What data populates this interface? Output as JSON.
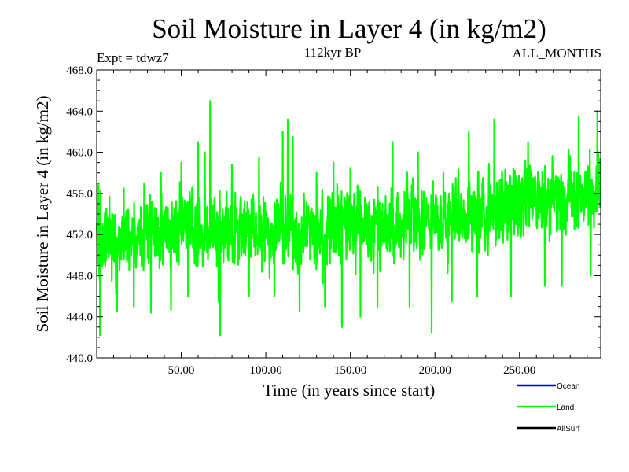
{
  "chart_data": {
    "type": "line",
    "title": "Soil Moisture in Layer 4 (in kg/m2)",
    "subtitle_left": "Expt = tdwz7",
    "subtitle_center": "112kyr BP",
    "subtitle_right": "ALL_MONTHS",
    "xlabel": "Time (in years since start)",
    "ylabel": "Soil Moisture in Layer 4 (in kg/m2)",
    "xlim": [
      0,
      298
    ],
    "ylim": [
      440,
      468
    ],
    "x_ticks": [
      50,
      100,
      150,
      200,
      250
    ],
    "x_tick_labels": [
      "50.00",
      "100.00",
      "150.00",
      "200.00",
      "250.00"
    ],
    "y_ticks": [
      440,
      444,
      448,
      452,
      456,
      460,
      464,
      468
    ],
    "y_tick_labels": [
      "440.0",
      "444.0",
      "448.0",
      "452.0",
      "456.0",
      "460.0",
      "464.0",
      "468.0"
    ],
    "grid": false,
    "legend_position": "bottom-right",
    "series": [
      {
        "name": "Ocean",
        "color": "#0000cc",
        "values": []
      },
      {
        "name": "Land",
        "color": "#00ff00",
        "x_start": 0,
        "x_step": 1,
        "trend": {
          "x": [
            0,
            50,
            100,
            150,
            200,
            250,
            298
          ],
          "y": [
            451.5,
            452.5,
            452.5,
            452.8,
            453.0,
            455.0,
            455.8
          ]
        },
        "noise_amplitude": 3.5,
        "samples": [
          {
            "x": 1,
            "y": 457
          },
          {
            "x": 2,
            "y": 442.2
          },
          {
            "x": 9,
            "y": 447.5
          },
          {
            "x": 12,
            "y": 444.5
          },
          {
            "x": 16,
            "y": 456.5
          },
          {
            "x": 22,
            "y": 445
          },
          {
            "x": 28,
            "y": 457
          },
          {
            "x": 32,
            "y": 444.4
          },
          {
            "x": 38,
            "y": 458
          },
          {
            "x": 44,
            "y": 444.7
          },
          {
            "x": 50,
            "y": 459
          },
          {
            "x": 54,
            "y": 446
          },
          {
            "x": 60,
            "y": 461
          },
          {
            "x": 64,
            "y": 460
          },
          {
            "x": 67,
            "y": 465
          },
          {
            "x": 72,
            "y": 445.5
          },
          {
            "x": 73,
            "y": 442.2
          },
          {
            "x": 80,
            "y": 458.8
          },
          {
            "x": 90,
            "y": 446
          },
          {
            "x": 96,
            "y": 459.5
          },
          {
            "x": 105,
            "y": 446
          },
          {
            "x": 110,
            "y": 462
          },
          {
            "x": 113,
            "y": 463.2
          },
          {
            "x": 116,
            "y": 461.5
          },
          {
            "x": 120,
            "y": 444.5
          },
          {
            "x": 130,
            "y": 458
          },
          {
            "x": 135,
            "y": 445
          },
          {
            "x": 140,
            "y": 459
          },
          {
            "x": 145,
            "y": 443
          },
          {
            "x": 150,
            "y": 458.5
          },
          {
            "x": 156,
            "y": 444
          },
          {
            "x": 166,
            "y": 445
          },
          {
            "x": 175,
            "y": 461
          },
          {
            "x": 185,
            "y": 445
          },
          {
            "x": 190,
            "y": 460
          },
          {
            "x": 198,
            "y": 442.5
          },
          {
            "x": 205,
            "y": 458
          },
          {
            "x": 210,
            "y": 445.5
          },
          {
            "x": 220,
            "y": 462
          },
          {
            "x": 225,
            "y": 446
          },
          {
            "x": 235,
            "y": 463.2
          },
          {
            "x": 245,
            "y": 446
          },
          {
            "x": 255,
            "y": 461
          },
          {
            "x": 265,
            "y": 447
          },
          {
            "x": 275,
            "y": 447
          },
          {
            "x": 285,
            "y": 463.5
          },
          {
            "x": 292,
            "y": 448
          },
          {
            "x": 296,
            "y": 464
          }
        ]
      },
      {
        "name": "AllSurf",
        "color": "#000000",
        "values": []
      }
    ]
  }
}
